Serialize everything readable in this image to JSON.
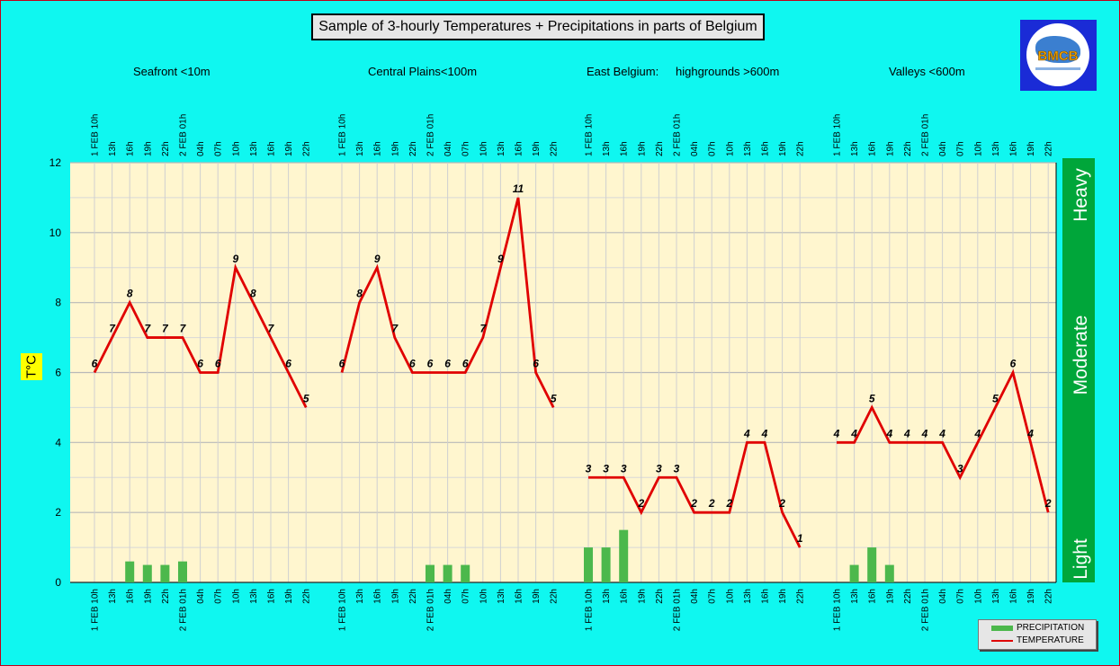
{
  "title": "Sample of 3-hourly Temperatures + Precipitations in parts of Belgium",
  "regions": [
    "Seafront <10m",
    "Central Plains<100m",
    "East Belgium:",
    "highgrounds >600m",
    "Valleys <600m"
  ],
  "logo_text": "BMCB",
  "intensity_labels": [
    "Heavy",
    "Moderate",
    "Light"
  ],
  "legend": {
    "precipitation": "PRECIPITATION",
    "temperature": "TEMPERATURE"
  },
  "colors": {
    "background": "#0ff7f0",
    "plot_area": "#fff6cf",
    "temperature": "#e00000",
    "precipitation": "#4cb84c",
    "intensity_bar": "#00a63a",
    "logo_bg": "#1a2bd6"
  },
  "chart_data": {
    "type": "bar+line",
    "ylabel": "T°C",
    "ylim": [
      0,
      12
    ],
    "yticks": [
      0,
      2,
      4,
      6,
      8,
      10,
      12
    ],
    "grid": true,
    "x": [
      "1 FEB 10h",
      "13h",
      "16h",
      "19h",
      "22h",
      "2 FEB 01h",
      "04h",
      "07h",
      "10h",
      "13h",
      "16h",
      "19h",
      "22h",
      "1 FEB 10h",
      "13h",
      "16h",
      "19h",
      "22h",
      "2 FEB 01h",
      "04h",
      "07h",
      "10h",
      "13h",
      "16h",
      "19h",
      "22h",
      "1 FEB 10h",
      "13h",
      "16h",
      "19h",
      "22h",
      "2 FEB 01h",
      "04h",
      "07h",
      "10h",
      "13h",
      "16h",
      "19h",
      "22h",
      "1 FEB 10h",
      "13h",
      "16h",
      "19h",
      "22h",
      "2 FEB 01h",
      "04h",
      "07h",
      "10h",
      "13h",
      "16h",
      "19h",
      "22h"
    ],
    "series": [
      {
        "name": "TEMPERATURE",
        "type": "line",
        "values": [
          6,
          7,
          8,
          7,
          7,
          7,
          6,
          6,
          9,
          8,
          7,
          6,
          5,
          6,
          8,
          9,
          7,
          6,
          6,
          6,
          6,
          7,
          9,
          11,
          6,
          5,
          3,
          3,
          3,
          2,
          3,
          3,
          2,
          2,
          2,
          4,
          4,
          2,
          1,
          4,
          4,
          5,
          4,
          4,
          4,
          4,
          3,
          4,
          5,
          6,
          4,
          2
        ]
      },
      {
        "name": "PRECIPITATION",
        "type": "bar",
        "values": [
          0,
          0,
          0.6,
          0.5,
          0.5,
          0.6,
          0,
          0,
          0,
          0,
          0,
          0,
          0,
          0,
          0,
          0,
          0,
          0,
          0.5,
          0.5,
          0.5,
          0,
          0,
          0,
          0,
          0,
          1,
          1,
          1.5,
          0,
          0,
          0,
          0,
          0,
          0,
          0,
          0,
          0,
          0,
          0,
          0.5,
          1,
          0.5,
          0,
          0,
          0,
          0,
          0,
          0,
          0,
          0,
          0
        ]
      }
    ],
    "legend_position": "bottom-right"
  }
}
